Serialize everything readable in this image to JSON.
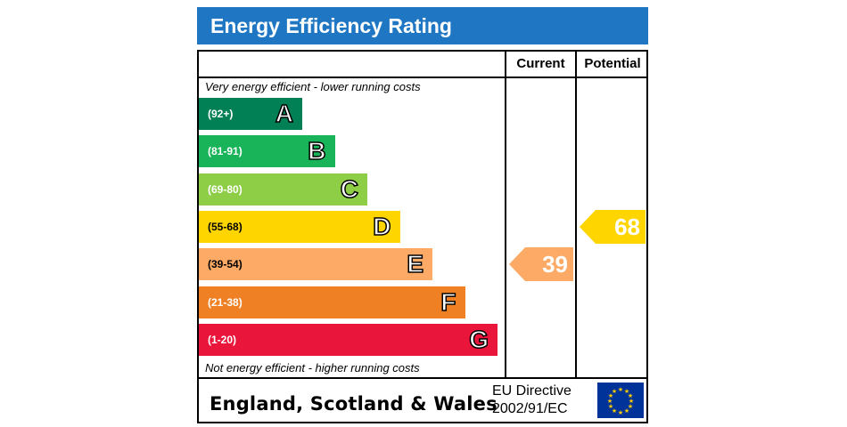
{
  "title": "Energy Efficiency Rating",
  "columns": {
    "current": "Current",
    "potential": "Potential"
  },
  "notes": {
    "top": "Very energy efficient - lower running costs",
    "bottom": "Not energy efficient - higher running costs"
  },
  "chart_data": {
    "type": "bar",
    "categories": [
      "A",
      "B",
      "C",
      "D",
      "E",
      "F",
      "G"
    ],
    "ranges": [
      "(92+)",
      "(81-91)",
      "(69-80)",
      "(55-68)",
      "(39-54)",
      "(21-38)",
      "(1-20)"
    ],
    "colors": [
      "#008054",
      "#19b459",
      "#8dce46",
      "#ffd500",
      "#fcaa65",
      "#ef8023",
      "#e9153b"
    ],
    "current": {
      "value": 39,
      "band": "E",
      "color": "#fcaa65"
    },
    "potential": {
      "value": 68,
      "band": "D",
      "color": "#ffd500"
    }
  },
  "footer": {
    "region": "England, Scotland & Wales",
    "directive_line1": "EU Directive",
    "directive_line2": "2002/91/EC"
  }
}
